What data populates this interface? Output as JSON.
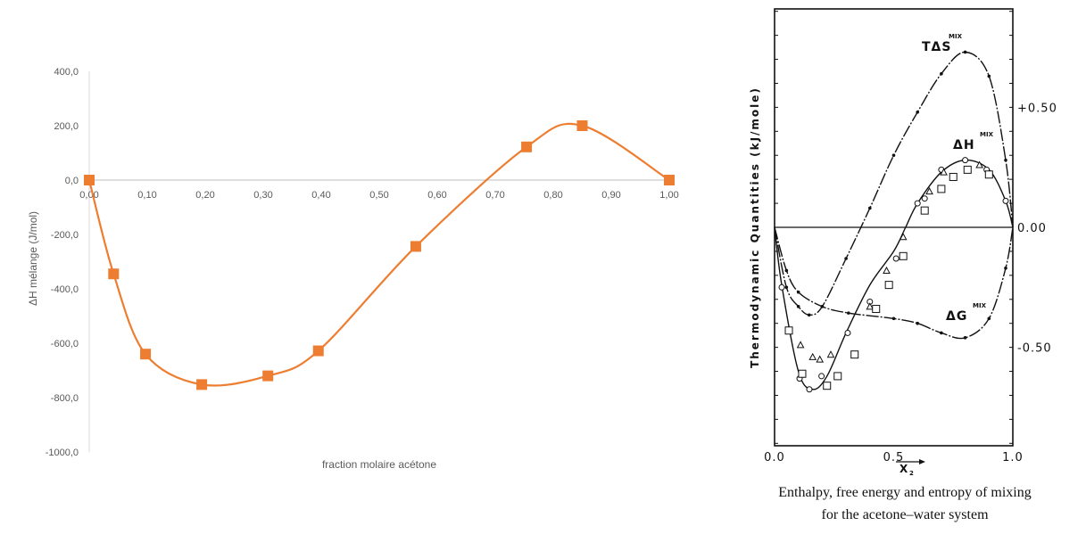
{
  "chart_data": [
    {
      "type": "line",
      "xlabel": "fraction molaire acétone",
      "ylabel": "ΔH mélange (J/mol)",
      "xlim": [
        0,
        1
      ],
      "ylim": [
        -1000,
        400
      ],
      "x_ticks": [
        "0,00",
        "0,10",
        "0,20",
        "0,30",
        "0,40",
        "0,50",
        "0,60",
        "0,70",
        "0,80",
        "0,90",
        "1,00"
      ],
      "y_ticks": [
        "400,0",
        "200,0",
        "0,0",
        "-200,0",
        "-400,0",
        "-600,0",
        "-800,0",
        "-1000,0"
      ],
      "grid": false,
      "smooth": true,
      "marker": "square",
      "color": "#ED7D31",
      "series": [
        {
          "x": [
            0.0,
            0.042,
            0.097,
            0.194,
            0.308,
            0.395,
            0.563,
            0.754,
            0.85,
            1.0
          ],
          "y": [
            0,
            -345,
            -640,
            -752,
            -720,
            -628,
            -244,
            122,
            200,
            0
          ]
        }
      ]
    },
    {
      "type": "line",
      "caption": [
        "Enthalpy, free energy and entropy of mixing",
        "for the acetone–water system"
      ],
      "xlabel": "X",
      "xlabel_sub": "2",
      "ylabel": "Thermodynamic Quantities (kJ/mole)",
      "xlim": [
        0,
        1
      ],
      "ylim": [
        -0.91,
        0.91
      ],
      "x_ticks": [
        "0.0",
        "0.5",
        "1.0"
      ],
      "y_ticks": [
        "+0.50",
        "0.00",
        "-0.50"
      ],
      "color": "#111111",
      "series": [
        {
          "name": "TΔS",
          "sup": "MIX",
          "x": [
            0,
            0.05,
            0.1,
            0.145,
            0.2,
            0.3,
            0.4,
            0.5,
            0.6,
            0.7,
            0.8,
            0.9,
            0.97,
            1.0
          ],
          "y": [
            0,
            -0.25,
            -0.33,
            -0.365,
            -0.33,
            -0.13,
            0.08,
            0.3,
            0.48,
            0.64,
            0.73,
            0.63,
            0.28,
            0
          ]
        },
        {
          "name": "ΔH",
          "sup": "MIX",
          "x": [
            0,
            0.03,
            0.1,
            0.16,
            0.22,
            0.3,
            0.4,
            0.5,
            0.55,
            0.6,
            0.7,
            0.8,
            0.9,
            0.97,
            1.0
          ],
          "y": [
            0,
            -0.24,
            -0.6,
            -0.675,
            -0.62,
            -0.44,
            -0.24,
            -0.1,
            0,
            0.1,
            0.23,
            0.28,
            0.24,
            0.11,
            0
          ]
        },
        {
          "name": "ΔG",
          "sup": "MIX",
          "x": [
            0,
            0.05,
            0.1,
            0.2,
            0.31,
            0.5,
            0.6,
            0.7,
            0.8,
            0.9,
            0.97,
            1.0
          ],
          "y": [
            0,
            -0.18,
            -0.27,
            -0.33,
            -0.357,
            -0.38,
            -0.4,
            -0.44,
            -0.46,
            -0.38,
            -0.17,
            0
          ]
        }
      ],
      "experimental_points": {
        "circle": [
          [
            0.03,
            -0.25
          ],
          [
            0.105,
            -0.63
          ],
          [
            0.146,
            -0.675
          ],
          [
            0.197,
            -0.62
          ],
          [
            0.307,
            -0.44
          ],
          [
            0.4,
            -0.31
          ],
          [
            0.51,
            -0.13
          ],
          [
            0.6,
            0.1
          ],
          [
            0.63,
            0.12
          ],
          [
            0.7,
            0.24
          ],
          [
            0.8,
            0.28
          ],
          [
            0.89,
            0.24
          ],
          [
            0.97,
            0.11
          ]
        ],
        "triangle": [
          [
            0.109,
            -0.49
          ],
          [
            0.16,
            -0.54
          ],
          [
            0.19,
            -0.55
          ],
          [
            0.236,
            -0.53
          ],
          [
            0.4,
            -0.33
          ],
          [
            0.47,
            -0.18
          ],
          [
            0.54,
            -0.04
          ],
          [
            0.65,
            0.15
          ],
          [
            0.71,
            0.23
          ],
          [
            0.86,
            0.26
          ]
        ],
        "square": [
          [
            0.06,
            -0.43
          ],
          [
            0.116,
            -0.61
          ],
          [
            0.22,
            -0.66
          ],
          [
            0.265,
            -0.62
          ],
          [
            0.336,
            -0.53
          ],
          [
            0.426,
            -0.34
          ],
          [
            0.48,
            -0.24
          ],
          [
            0.54,
            -0.12
          ],
          [
            0.63,
            0.07
          ],
          [
            0.7,
            0.16
          ],
          [
            0.75,
            0.21
          ],
          [
            0.81,
            0.24
          ],
          [
            0.9,
            0.22
          ]
        ]
      }
    }
  ]
}
